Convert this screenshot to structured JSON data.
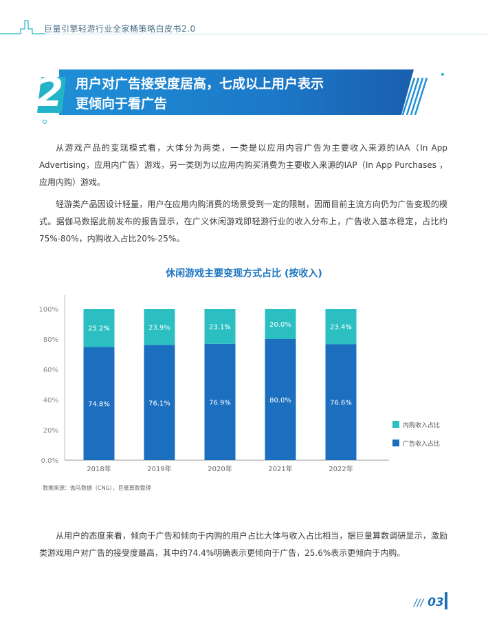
{
  "header": {
    "title": "巨量引擎轻游行业全家桶策略白皮书2.0",
    "page_number_prefix": "///",
    "page_number": "03"
  },
  "section": {
    "number": "2",
    "title_line1": "用户对广告接受度居高，七成以上用户表示",
    "title_line2": "更倾向于看广告"
  },
  "paragraphs": [
    "从游戏产品的变现模式看，大体分为两类，一类是以应用内容广告为主要收入来源的IAA（In App Advertising，应用内广告）游戏，另一类则为以应用内购买消费为主要收入来源的IAP（In App Purchases ，应用内购）游戏。",
    "轻游类产品因设计轻量，用户在应用内购消费的场景受到一定的限制，因而目前主流方向仍为广告变现的模式。据伽马数据此前发布的报告显示，在广义休闲游戏即轻游行业的收入分布上，广告收入基本稳定，占比约75%-80%，内购收入占比20%-25%。",
    "从用户的态度来看，倾向于广告和倾向于内购的用户占比大体与收入占比相当，据巨量算数调研显示，激励类游戏用户对广告的接受度最高，其中约74.4%明确表示更倾向于广告，25.6%表示更倾向于内购。"
  ],
  "chart_data": {
    "type": "bar",
    "stacked": true,
    "title": "休闲游戏主要变现方式占比 (按收入)",
    "categories": [
      "2018年",
      "2019年",
      "2020年",
      "2021年",
      "2022年"
    ],
    "series": [
      {
        "name": "广告收入占比",
        "color": "#1c6fbf",
        "values": [
          74.8,
          76.1,
          76.9,
          80.0,
          76.6
        ],
        "labels": [
          "74.8%",
          "76.1%",
          "76.9%",
          "80.0%",
          "76.6%"
        ]
      },
      {
        "name": "内购收入占比",
        "color": "#2bbfc1",
        "values": [
          25.2,
          23.9,
          23.1,
          20.0,
          23.4
        ],
        "labels": [
          "25.2%",
          "23.9%",
          "23.1%",
          "20.0%",
          "23.4%"
        ]
      }
    ],
    "y_ticks": [
      "0.0%",
      "20%",
      "40%",
      "60%",
      "80%",
      "100%"
    ],
    "ylim": [
      0,
      100
    ],
    "legend_position": "right"
  },
  "source_note": "数据来源：伽马数据（CNG），巨量算数整理"
}
